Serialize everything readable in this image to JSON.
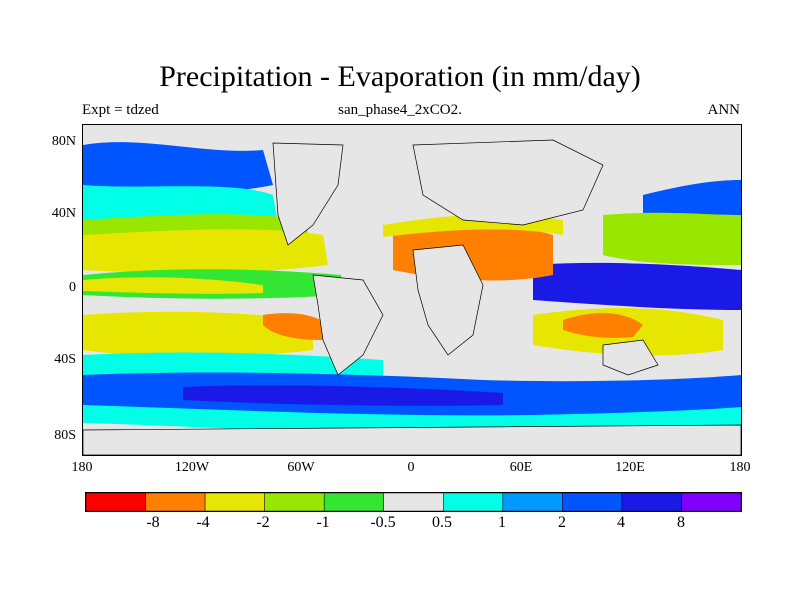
{
  "header": {
    "title": "Precipitation - Evaporation (in mm/day)",
    "left_label": "Expt = tdzed",
    "center_label": "san_phase4_2xCO2.",
    "right_label": "ANN"
  },
  "map": {
    "y_ticks": [
      "80N",
      "40N",
      "0",
      "40S",
      "80S"
    ],
    "x_ticks": [
      "180",
      "120W",
      "60W",
      "0",
      "60E",
      "120E",
      "180"
    ],
    "land_color": "#e6e6e6"
  },
  "colorbar": {
    "labels": [
      "-8",
      "-4",
      "-2",
      "-1",
      "-0.5",
      "0.5",
      "1",
      "2",
      "4",
      "8"
    ],
    "colors": [
      "#ff0000",
      "#ff8000",
      "#e6e600",
      "#99e600",
      "#33e633",
      "#e6e6e6",
      "#00ffe6",
      "#0099ff",
      "#0055ff",
      "#1a1ae6",
      "#8000ff"
    ]
  }
}
